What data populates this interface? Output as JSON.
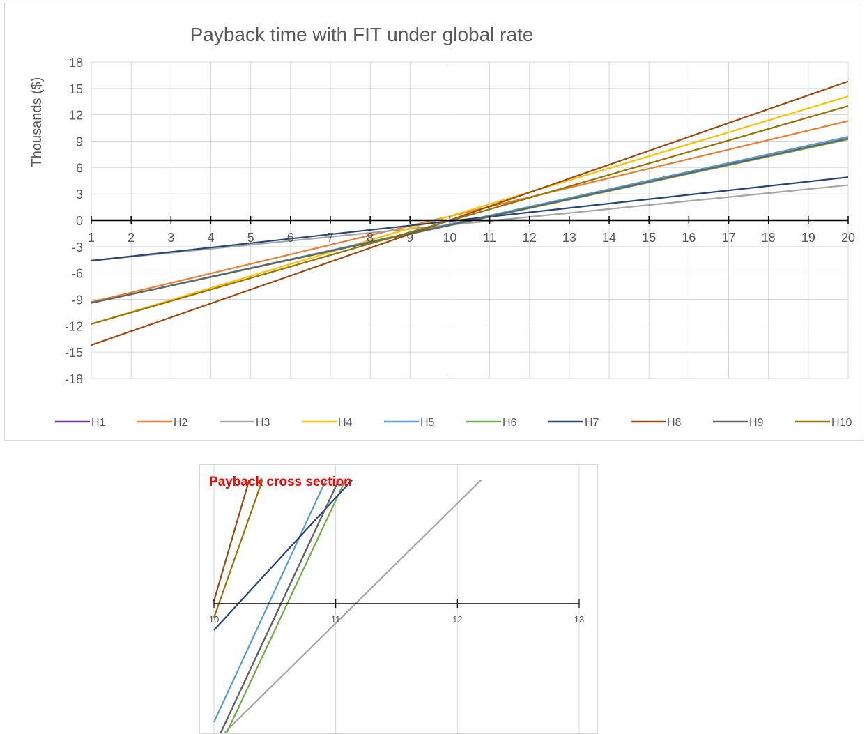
{
  "chart_data": [
    {
      "type": "line",
      "title": "Payback time with FIT under global rate",
      "xlabel": "",
      "ylabel": "Thousands ($)",
      "x": [
        1,
        20
      ],
      "xticks": [
        "1",
        "2",
        "3",
        "4",
        "5",
        "6",
        "7",
        "8",
        "9",
        "10",
        "11",
        "12",
        "13",
        "14",
        "15",
        "16",
        "17",
        "18",
        "19",
        "20"
      ],
      "xlim": [
        1,
        20
      ],
      "ylim": [
        -18,
        18
      ],
      "yticks": [
        "18",
        "15",
        "12",
        "9",
        "6",
        "3",
        "0",
        "-3",
        "-6",
        "-9",
        "-12",
        "-15",
        "-18"
      ],
      "grid": true,
      "legend_position": "bottom",
      "series": [
        {
          "name": "H1",
          "color": "#7030a0",
          "values": [
            -9.4,
            9.3
          ]
        },
        {
          "name": "H2",
          "color": "#ed7d31",
          "values": [
            -9.3,
            11.3
          ]
        },
        {
          "name": "H3",
          "color": "#a5a5a5",
          "values": [
            -4.6,
            4.0
          ]
        },
        {
          "name": "H4",
          "color": "#ffc000",
          "values": [
            -11.8,
            14.1
          ]
        },
        {
          "name": "H5",
          "color": "#5b9bd5",
          "values": [
            -9.4,
            9.5
          ]
        },
        {
          "name": "H6",
          "color": "#70ad47",
          "values": [
            -9.4,
            9.2
          ]
        },
        {
          "name": "H7",
          "color": "#264478",
          "values": [
            -4.6,
            4.9
          ]
        },
        {
          "name": "H8",
          "color": "#9e480e",
          "values": [
            -14.2,
            15.8
          ]
        },
        {
          "name": "H9",
          "color": "#636363",
          "values": [
            -9.4,
            9.3
          ]
        },
        {
          "name": "H10",
          "color": "#997300",
          "values": [
            -11.8,
            13.0
          ]
        }
      ]
    },
    {
      "type": "line",
      "title": "Payback cross section",
      "title_color": "#ff0000",
      "xlabel": "",
      "ylabel": "",
      "xlim": [
        10,
        13
      ],
      "ylim": [
        -0.7,
        0.7
      ],
      "xticks": [
        "10",
        "11",
        "12",
        "13"
      ],
      "grid": true
    }
  ],
  "legend": {
    "items": [
      {
        "label": "H1",
        "color": "#7030a0"
      },
      {
        "label": "H2",
        "color": "#ed7d31"
      },
      {
        "label": "H3",
        "color": "#a5a5a5"
      },
      {
        "label": "H4",
        "color": "#ffc000"
      },
      {
        "label": "H5",
        "color": "#5b9bd5"
      },
      {
        "label": "H6",
        "color": "#70ad47"
      },
      {
        "label": "H7",
        "color": "#264478"
      },
      {
        "label": "H8",
        "color": "#9e480e"
      },
      {
        "label": "H9",
        "color": "#636363"
      },
      {
        "label": "H10",
        "color": "#997300"
      }
    ]
  }
}
